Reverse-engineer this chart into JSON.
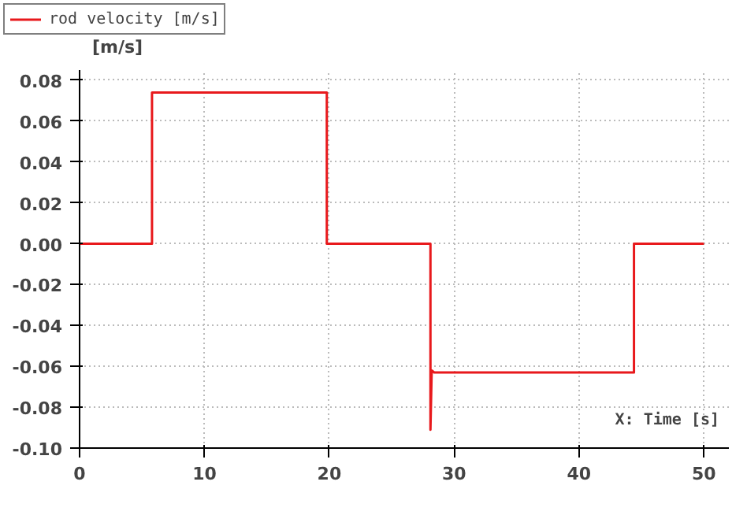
{
  "chart_data": {
    "type": "line",
    "xlabel": "X: Time [s]",
    "ylabel": "[m/s]",
    "x": [
      0,
      5.8,
      5.8,
      19.8,
      19.8,
      28.1,
      28.1,
      28.2,
      28.4,
      44.4,
      44.4,
      50
    ],
    "series": [
      {
        "name": "rod velocity [m/s]",
        "color": "#e8191c",
        "values": [
          0,
          0,
          0.074,
          0.074,
          0,
          0,
          -0.091,
          -0.062,
          -0.063,
          -0.063,
          0,
          0
        ]
      }
    ],
    "xlim": [
      0,
      52
    ],
    "ylim": [
      -0.1,
      0.085
    ],
    "xticks": [
      0,
      10,
      20,
      30,
      40,
      50
    ],
    "yticks": [
      {
        "value": -0.1,
        "label": "-0.10"
      },
      {
        "value": -0.08,
        "label": "-0.08"
      },
      {
        "value": -0.06,
        "label": "-0.06"
      },
      {
        "value": -0.04,
        "label": "-0.04"
      },
      {
        "value": -0.02,
        "label": "-0.02"
      },
      {
        "value": 0,
        "label": "0.00"
      },
      {
        "value": 0.02,
        "label": "0.02"
      },
      {
        "value": 0.04,
        "label": "0.04"
      },
      {
        "value": 0.06,
        "label": "0.06"
      },
      {
        "value": 0.08,
        "label": "0.08"
      }
    ],
    "grid": true,
    "legend": "top left",
    "line_style": "solid",
    "marker": "none"
  }
}
